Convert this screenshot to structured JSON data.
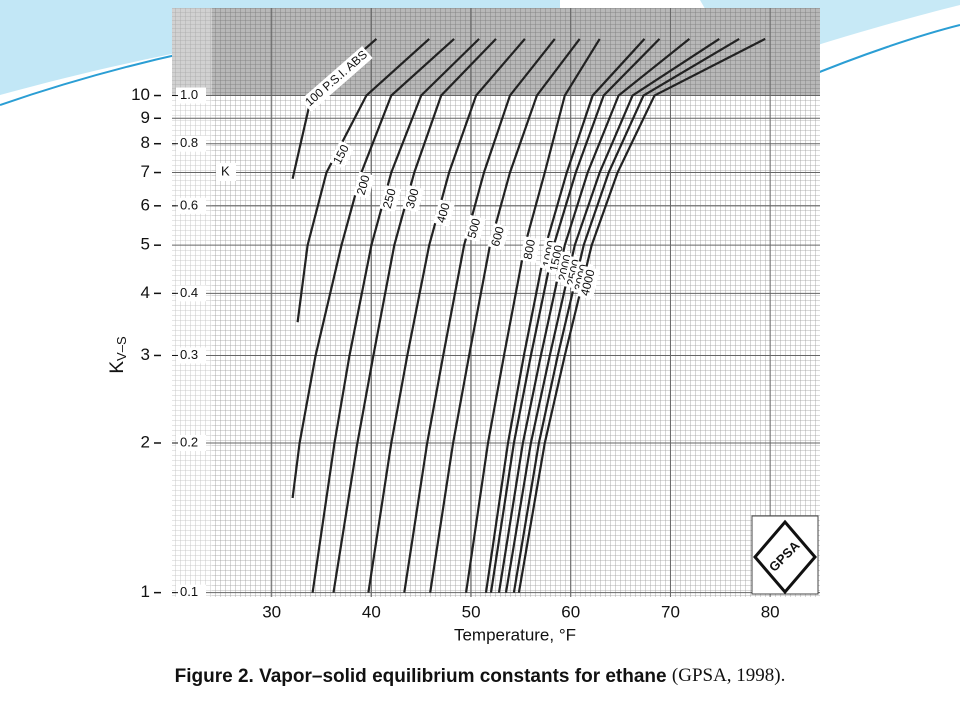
{
  "chart_data": {
    "type": "line",
    "x_label": "Temperature, °F",
    "y_label": "K",
    "y_label_sub": "V–S",
    "y2_label": "K",
    "caption": "Figure 2. Vapor–solid equilibrium constants for ethane",
    "caption_source": "(GPSA, 1998).",
    "logo_text": "GPSA",
    "y_log": true,
    "grid": true,
    "xlim": [
      20,
      85
    ],
    "xticks": [
      30,
      40,
      50,
      60,
      70,
      80
    ],
    "ylim": [
      0.98,
      15
    ],
    "yticks": [
      1,
      2,
      3,
      4,
      5,
      6,
      7,
      8,
      9,
      10
    ],
    "y2lim": [
      0.098,
      1.5
    ],
    "y2ticks": [
      0.1,
      0.2,
      0.3,
      0.4,
      0.6,
      0.8,
      {
        "value": 1,
        "label": "1.0"
      }
    ],
    "series": [
      {
        "name": "100 P.S.I. ABS",
        "color": "#222222",
        "x": [
          32.1,
          34.0,
          40.5
        ],
        "values": [
          6.8,
          10,
          13
        ]
      },
      {
        "name": "150",
        "color": "#222222",
        "x": [
          32.6,
          33.6,
          35.5,
          39.5,
          45.8
        ],
        "values": [
          3.5,
          5,
          7,
          10,
          13
        ]
      },
      {
        "name": "200",
        "color": "#222222",
        "x": [
          32.1,
          32.8,
          34.4,
          37.0,
          39.0,
          42.0,
          48.3
        ],
        "values": [
          1.55,
          2,
          3,
          5,
          7,
          10,
          13
        ]
      },
      {
        "name": "250",
        "color": "#222222",
        "x": [
          34.1,
          36.3,
          37.8,
          40.0,
          42.0,
          45.0,
          50.8
        ],
        "values": [
          1,
          2,
          3,
          5,
          7,
          10,
          13
        ]
      },
      {
        "name": "300",
        "color": "#222222",
        "x": [
          36.2,
          38.6,
          40.2,
          42.3,
          44.3,
          47.0,
          52.5
        ],
        "values": [
          1,
          2,
          3,
          5,
          7,
          10,
          13
        ]
      },
      {
        "name": "400",
        "color": "#222222",
        "x": [
          39.7,
          42.0,
          43.6,
          45.8,
          47.8,
          50.5,
          55.4
        ],
        "values": [
          1,
          2,
          3,
          5,
          7,
          10,
          13
        ]
      },
      {
        "name": "500",
        "color": "#222222",
        "x": [
          43.3,
          45.6,
          47.2,
          49.3,
          51.3,
          53.9,
          58.4
        ],
        "values": [
          1,
          2,
          3,
          5,
          7,
          10,
          13
        ]
      },
      {
        "name": "600",
        "color": "#222222",
        "x": [
          45.9,
          48.2,
          49.8,
          51.9,
          53.9,
          56.6,
          60.9
        ],
        "values": [
          1,
          2,
          3,
          5,
          7,
          10,
          13
        ]
      },
      {
        "name": "800",
        "color": "#222222",
        "x": [
          49.5,
          51.7,
          53.3,
          55.4,
          57.4,
          59.4,
          62.9
        ],
        "values": [
          1,
          2,
          3,
          5,
          7,
          10,
          13
        ]
      },
      {
        "name": "1000",
        "color": "#222222",
        "x": [
          51.5,
          53.7,
          55.3,
          57.5,
          59.6,
          62.2,
          67.4
        ],
        "values": [
          1,
          2,
          3,
          5,
          7,
          10,
          13
        ]
      },
      {
        "name": "1500",
        "color": "#222222",
        "x": [
          52.0,
          54.3,
          56.0,
          58.3,
          60.5,
          63.3,
          68.9
        ],
        "values": [
          1,
          2,
          3,
          5,
          7,
          10,
          13
        ]
      },
      {
        "name": "2000",
        "color": "#222222",
        "x": [
          52.8,
          55.2,
          57.0,
          59.4,
          61.7,
          64.8,
          71.9
        ],
        "values": [
          1,
          2,
          3,
          5,
          7,
          10,
          13
        ]
      },
      {
        "name": "2500",
        "color": "#222222",
        "x": [
          53.5,
          56.0,
          57.9,
          60.4,
          62.9,
          66.2,
          74.9
        ],
        "values": [
          1,
          2,
          3,
          5,
          7,
          10,
          13
        ]
      },
      {
        "name": "3000",
        "color": "#222222",
        "x": [
          54.3,
          56.8,
          58.7,
          61.3,
          63.8,
          67.3,
          76.9
        ],
        "values": [
          1,
          2,
          3,
          5,
          7,
          10,
          13
        ]
      },
      {
        "name": "4000",
        "color": "#222222",
        "x": [
          54.8,
          57.4,
          59.4,
          62.1,
          64.7,
          68.4,
          79.5
        ],
        "values": [
          1,
          2,
          3,
          5,
          7,
          10,
          13
        ]
      }
    ]
  }
}
